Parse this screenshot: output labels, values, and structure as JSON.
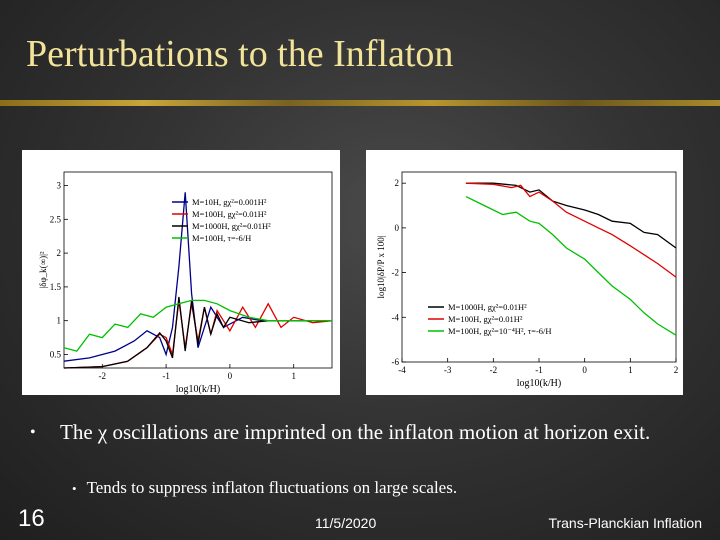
{
  "slide": {
    "title": "Perturbations to the Inflaton",
    "bullet": {
      "prefix": "The ",
      "symbol": "χ",
      "text": " oscillations are imprinted on the inflaton motion at horizon exit."
    },
    "sub_bullet": "Tends to suppress inflaton fluctuations on large scales.",
    "slide_number": "16",
    "date": "11/5/2020",
    "footer_title": "Trans-Planckian Inflation"
  },
  "chart_data": [
    {
      "type": "line",
      "xlabel": "log10(k/H)",
      "ylabel": "|δφ_k(∞)|²",
      "xticks": [
        "-2",
        "-1",
        "0",
        "1"
      ],
      "yticks": [
        "0.5",
        "1",
        "1.5",
        "2",
        "2.5",
        "3"
      ],
      "ylim": [
        0.3,
        3.2
      ],
      "legend": [
        {
          "label": "M=10H, gχ²=0.001H²",
          "color": "#00008b"
        },
        {
          "label": "M=100H, gχ²=0.01H²",
          "color": "#e00000"
        },
        {
          "label": "M=1000H, gχ²=0.01H²",
          "color": "#000000"
        },
        {
          "label": "M=100H, τ=-6/H",
          "color": "#00c000"
        }
      ],
      "series": [
        {
          "name": "M=10H, gχ²=0.001H²",
          "color": "#00008b",
          "x": [
            -2.6,
            -2.2,
            -1.8,
            -1.5,
            -1.3,
            -1.1,
            -1.0,
            -0.9,
            -0.8,
            -0.7,
            -0.6,
            -0.5,
            -0.3,
            -0.1,
            0.2,
            0.5,
            1.0,
            1.6
          ],
          "y": [
            0.4,
            0.45,
            0.55,
            0.7,
            0.85,
            0.75,
            0.5,
            0.9,
            1.8,
            2.9,
            1.4,
            0.6,
            1.2,
            0.9,
            1.05,
            1.0,
            1.0,
            1.0
          ]
        },
        {
          "name": "M=100H, gχ²=0.01H²",
          "color": "#e00000",
          "x": [
            -2.6,
            -2.0,
            -1.6,
            -1.3,
            -1.1,
            -1.0,
            -0.9,
            -0.8,
            -0.7,
            -0.6,
            -0.5,
            -0.4,
            -0.3,
            -0.2,
            0.0,
            0.2,
            0.4,
            0.6,
            0.8,
            1.0,
            1.3,
            1.6
          ],
          "y": [
            0.3,
            0.32,
            0.4,
            0.6,
            0.8,
            0.75,
            0.5,
            1.3,
            0.6,
            1.25,
            0.7,
            1.2,
            0.8,
            1.15,
            0.85,
            1.2,
            0.9,
            1.25,
            0.9,
            1.05,
            0.97,
            1.0
          ]
        },
        {
          "name": "M=1000H, gχ²=0.01H²",
          "color": "#000000",
          "x": [
            -2.6,
            -2.0,
            -1.6,
            -1.3,
            -1.1,
            -1.0,
            -0.9,
            -0.8,
            -0.7,
            -0.6,
            -0.5,
            -0.4,
            -0.3,
            -0.2,
            -0.1,
            0.0,
            0.3,
            0.6,
            1.0,
            1.6
          ],
          "y": [
            0.3,
            0.32,
            0.4,
            0.6,
            0.82,
            0.7,
            0.45,
            1.35,
            0.55,
            1.3,
            0.65,
            1.2,
            0.8,
            1.1,
            0.9,
            1.05,
            0.97,
            1.0,
            1.0,
            1.0
          ]
        },
        {
          "name": "M=100H, τ=-6/H",
          "color": "#00c000",
          "x": [
            -2.6,
            -2.4,
            -2.2,
            -2.0,
            -1.8,
            -1.6,
            -1.4,
            -1.2,
            -1.0,
            -0.8,
            -0.6,
            -0.4,
            -0.2,
            0.0,
            0.3,
            0.6,
            1.0,
            1.6
          ],
          "y": [
            0.6,
            0.55,
            0.8,
            0.75,
            0.95,
            0.9,
            1.1,
            1.05,
            1.2,
            1.25,
            1.3,
            1.3,
            1.25,
            1.15,
            1.05,
            1.0,
            1.0,
            1.0
          ]
        }
      ]
    },
    {
      "type": "line",
      "xlabel": "log10(k/H)",
      "ylabel": "log10|δP/P x 100|",
      "xticks": [
        "-4",
        "-3",
        "-2",
        "-1",
        "0",
        "1",
        "2"
      ],
      "yticks": [
        "-6",
        "-4",
        "-2",
        "0",
        "2"
      ],
      "xlim": [
        -4,
        2
      ],
      "ylim": [
        -6,
        2.5
      ],
      "legend": [
        {
          "label": "M=1000H, gχ²=0.01H²",
          "color": "#000000"
        },
        {
          "label": "M=100H, gχ²=0.01H²",
          "color": "#e00000"
        },
        {
          "label": "M=100H, gχ²=10⁻⁴H², τ=-6/H",
          "color": "#00c000"
        }
      ],
      "series": [
        {
          "name": "M=1000H, gχ²=0.01H²",
          "color": "#000000",
          "x": [
            -2.6,
            -2.0,
            -1.5,
            -1.2,
            -1.0,
            -0.7,
            -0.4,
            0.0,
            0.3,
            0.6,
            1.0,
            1.3,
            1.6,
            2.0
          ],
          "y": [
            2.0,
            2.0,
            1.9,
            1.6,
            1.7,
            1.2,
            1.0,
            0.8,
            0.6,
            0.3,
            0.2,
            -0.2,
            -0.3,
            -0.9
          ]
        },
        {
          "name": "M=100H, gχ²=0.01H²",
          "color": "#e00000",
          "x": [
            -2.6,
            -2.0,
            -1.6,
            -1.4,
            -1.2,
            -1.0,
            -0.7,
            -0.4,
            0.0,
            0.3,
            0.6,
            1.0,
            1.3,
            1.6,
            2.0
          ],
          "y": [
            2.0,
            1.95,
            1.8,
            1.9,
            1.4,
            1.6,
            1.2,
            0.7,
            0.3,
            0.0,
            -0.3,
            -0.8,
            -1.2,
            -1.6,
            -2.2
          ]
        },
        {
          "name": "M=100H, gχ²=10⁻⁴H², τ=-6/H",
          "color": "#00c000",
          "x": [
            -2.6,
            -2.2,
            -1.8,
            -1.5,
            -1.2,
            -1.0,
            -0.7,
            -0.4,
            0.0,
            0.3,
            0.6,
            1.0,
            1.3,
            1.6,
            2.0
          ],
          "y": [
            1.4,
            1.0,
            0.6,
            0.7,
            0.3,
            0.2,
            -0.3,
            -0.9,
            -1.4,
            -2.0,
            -2.6,
            -3.2,
            -3.8,
            -4.3,
            -4.8
          ]
        }
      ]
    }
  ]
}
